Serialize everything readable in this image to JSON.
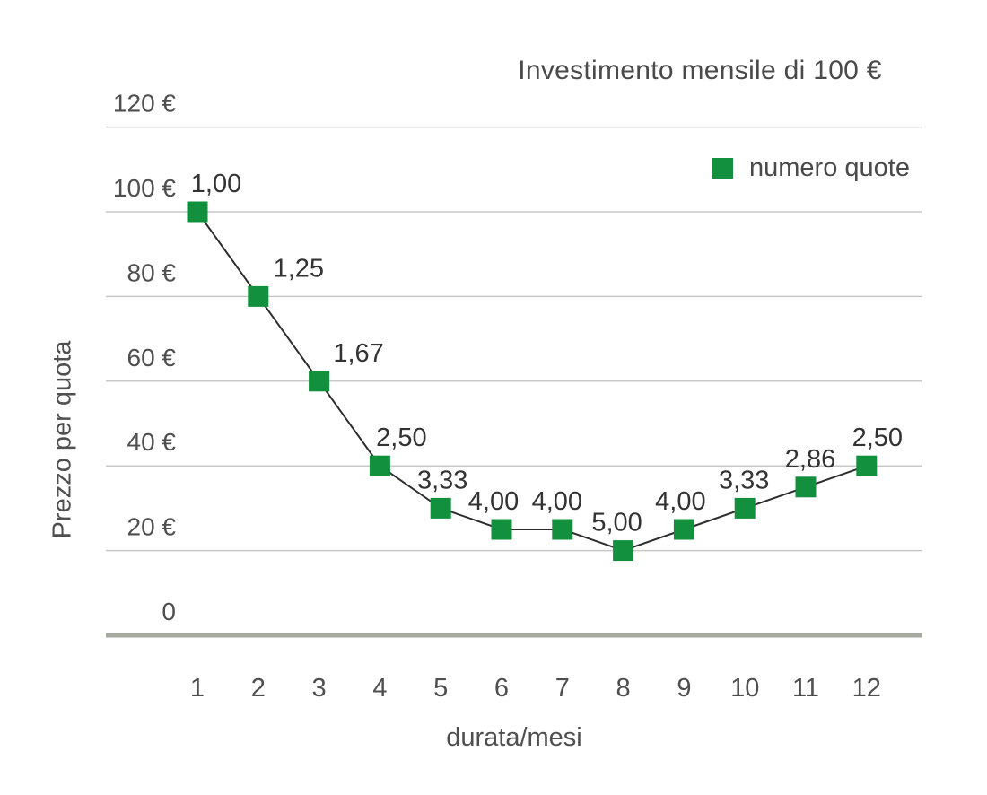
{
  "chart_data": {
    "type": "line",
    "title": "Investimento mensile di 100 €",
    "xlabel": "durata/mesi",
    "ylabel": "Prezzo per quota",
    "legend": {
      "label": "numero quote",
      "position": "top-right",
      "marker": "square"
    },
    "x": [
      1,
      2,
      3,
      4,
      5,
      6,
      7,
      8,
      9,
      10,
      11,
      12
    ],
    "x_tick_labels": [
      "1",
      "2",
      "3",
      "4",
      "5",
      "6",
      "7",
      "8",
      "9",
      "10",
      "11",
      "12"
    ],
    "series": [
      {
        "name": "numero quote",
        "values": [
          100,
          80,
          60,
          40,
          30,
          25,
          25,
          20,
          25,
          30,
          35,
          40
        ],
        "point_labels": [
          "1,00",
          "1,25",
          "1,67",
          "2,50",
          "3,33",
          "4,00",
          "4,00",
          "5,00",
          "4,00",
          "3,33",
          "2,86",
          "2,50"
        ]
      }
    ],
    "y_ticks": [
      {
        "value": 0,
        "label": "0"
      },
      {
        "value": 20,
        "label": "20 €"
      },
      {
        "value": 40,
        "label": "40 €"
      },
      {
        "value": 60,
        "label": "60 €"
      },
      {
        "value": 80,
        "label": "80 €"
      },
      {
        "value": 100,
        "label": "100 €"
      },
      {
        "value": 120,
        "label": "120 €"
      }
    ],
    "ylim": [
      0,
      120
    ],
    "grid": true,
    "point_label_dx": [
      21,
      45,
      44,
      24,
      2,
      -9,
      -6,
      -7,
      -4,
      -1,
      5,
      12
    ],
    "colors": {
      "marker": "#12903E",
      "line": "#2D2D2D",
      "gridline": "#C8C8C8",
      "zero_axis": "#A6A9A2",
      "tick_text": "#4F4F4F",
      "data_label": "#333333"
    }
  }
}
